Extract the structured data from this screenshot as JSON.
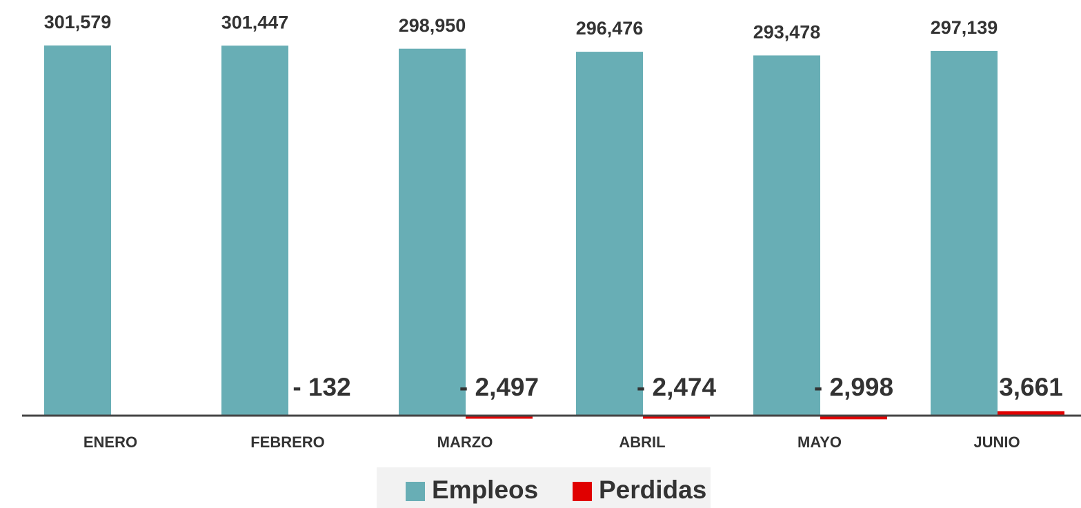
{
  "chart_data": {
    "type": "bar",
    "categories": [
      "ENERO",
      "FEBRERO",
      "MARZO",
      "ABRIL",
      "MAYO",
      "JUNIO"
    ],
    "series": [
      {
        "name": "Empleos",
        "color": "#68aeb5",
        "values": [
          301579,
          301447,
          298950,
          296476,
          293478,
          297139
        ],
        "value_labels": [
          "301,579",
          "301,447",
          "298,950",
          "296,476",
          "293,478",
          "297,139"
        ]
      },
      {
        "name": "Perdidas",
        "color": "#e00000",
        "values": [
          null,
          -132,
          -2497,
          -2474,
          -2998,
          3661
        ],
        "value_labels": [
          null,
          "- 132",
          "- 2,497",
          "- 2,474",
          "- 2,998",
          "3,661"
        ]
      }
    ],
    "ylim": [
      0,
      310000
    ],
    "legend": "bottom"
  }
}
